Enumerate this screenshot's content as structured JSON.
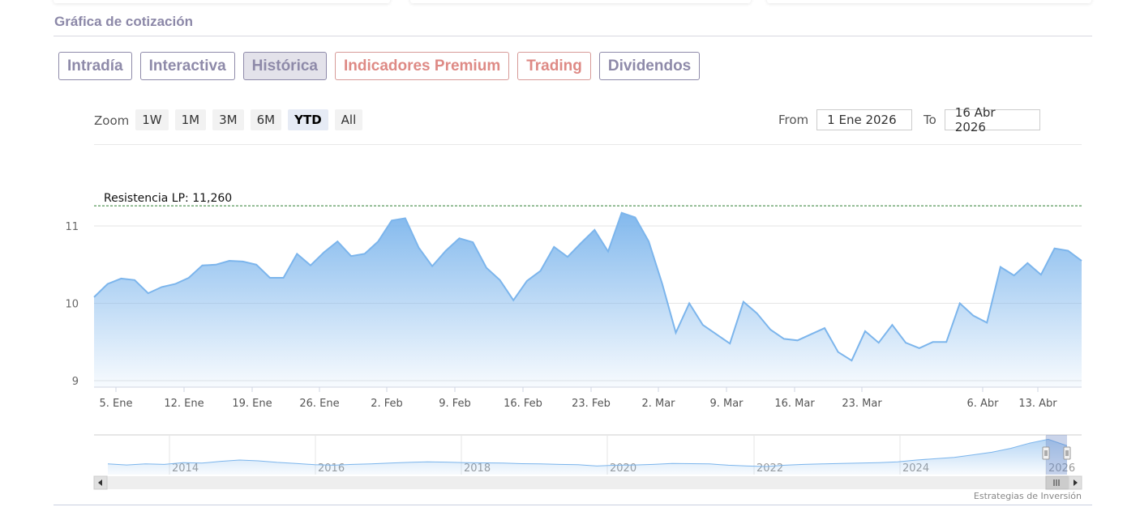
{
  "section": {
    "title": "Gráfica de cotización"
  },
  "tabs": [
    {
      "label": "Intradía",
      "state": "normal"
    },
    {
      "label": "Interactiva",
      "state": "normal"
    },
    {
      "label": "Histórica",
      "state": "active"
    },
    {
      "label": "Indicadores Premium",
      "state": "premium"
    },
    {
      "label": "Trading",
      "state": "premium"
    },
    {
      "label": "Dividendos",
      "state": "normal"
    }
  ],
  "zoom": {
    "label": "Zoom",
    "buttons": [
      "1W",
      "1M",
      "3M",
      "6M",
      "YTD",
      "All"
    ],
    "selected": "YTD"
  },
  "range": {
    "from_label": "From",
    "from_value": "1 Ene 2026",
    "to_label": "To",
    "to_value": "16 Abr 2026"
  },
  "credits": "Estrategias de Inversión",
  "colors": {
    "accent": "#7cb5ec",
    "tab_border": "#8e8aa9",
    "premium": "#de8a85",
    "resistance": "#2e7d32"
  },
  "chart_data": {
    "type": "area",
    "series": [
      {
        "values": [
          10.08,
          10.25,
          10.32,
          10.3,
          10.13,
          10.21,
          10.25,
          10.33,
          10.49,
          10.5,
          10.55,
          10.54,
          10.5,
          10.33,
          10.33,
          10.64,
          10.49,
          10.66,
          10.8,
          10.61,
          10.64,
          10.8,
          11.07,
          11.1,
          10.72,
          10.48,
          10.68,
          10.84,
          10.79,
          10.46,
          10.3,
          10.04,
          10.29,
          10.42,
          10.73,
          10.6,
          10.78,
          10.95,
          10.67,
          11.17,
          11.11,
          10.8,
          10.25,
          9.62,
          10.0,
          9.72,
          9.6,
          9.48,
          10.02,
          9.87,
          9.66,
          9.54,
          9.52,
          9.6,
          9.68,
          9.37,
          9.26,
          9.64,
          9.49,
          9.72,
          9.49,
          9.42,
          9.5,
          9.5,
          10.0,
          9.84,
          9.75,
          10.47,
          10.36,
          10.52,
          10.37,
          10.71,
          10.68,
          10.55
        ]
      }
    ],
    "x_axis_labels": [
      "5. Ene",
      "12. Ene",
      "19. Ene",
      "26. Ene",
      "2. Feb",
      "9. Feb",
      "16. Feb",
      "23. Feb",
      "2. Mar",
      "9. Mar",
      "16. Mar",
      "23. Mar",
      "6. Abr",
      "13. Abr"
    ],
    "y_axis_labels": [
      "11",
      "10",
      "9"
    ],
    "ylim": [
      9,
      11.25
    ],
    "plot_lines": [
      {
        "label": "Resistencia LP: 11,260",
        "value": 11.26,
        "style": "dashed"
      }
    ],
    "navigator": {
      "labels": [
        "2014",
        "2016",
        "2018",
        "2020",
        "2022",
        "2024",
        "2026"
      ],
      "values": [
        10.0,
        9.96,
        10.0,
        9.98,
        10.05,
        10.03,
        10.1,
        10.15,
        10.12,
        10.06,
        10.02,
        9.97,
        9.95,
        9.98,
        10.0,
        10.03,
        10.06,
        10.08,
        10.07,
        10.05,
        10.04,
        10.03,
        10.01,
        10.0,
        9.98,
        9.97,
        9.92,
        9.95,
        9.96,
        9.98,
        10.02,
        10.01,
        10.0,
        9.95,
        9.92,
        9.9,
        9.95,
        9.98,
        10.0,
        10.02,
        10.03,
        10.05,
        10.08,
        10.15,
        10.2,
        10.25,
        10.35,
        10.45,
        10.6,
        10.8,
        10.95,
        10.7
      ]
    },
    "grid": true,
    "legend": "none"
  }
}
